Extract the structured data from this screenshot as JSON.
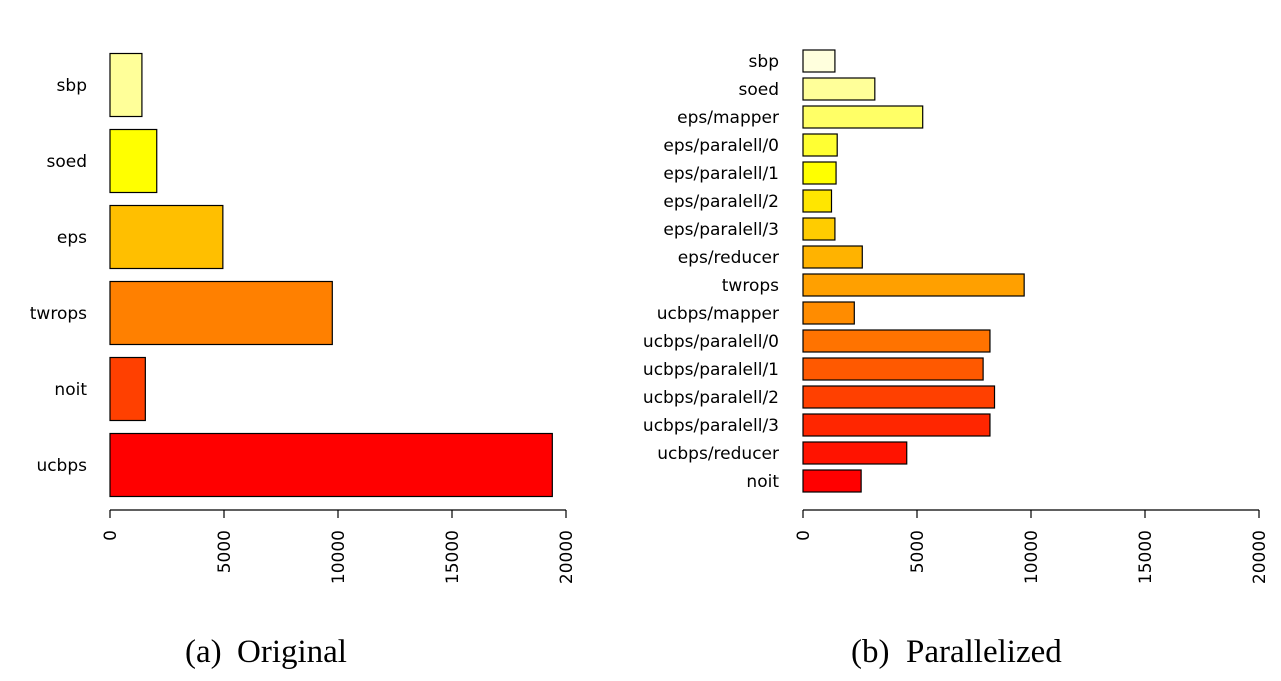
{
  "chart_data": [
    {
      "type": "bar",
      "orientation": "horizontal",
      "categories": [
        "sbp",
        "soed",
        "eps",
        "twrops",
        "noit",
        "ucbps"
      ],
      "values": [
        1400,
        2050,
        4950,
        9750,
        1550,
        19400
      ],
      "colors": [
        "#FFFF99",
        "#FFFF00",
        "#FFBF00",
        "#FF8000",
        "#FF4000",
        "#FF0000"
      ],
      "xlim": [
        0,
        20000
      ],
      "xticks": [
        "0",
        "5000",
        "10000",
        "15000",
        "20000"
      ],
      "tick_values": [
        0,
        5000,
        10000,
        15000,
        20000
      ],
      "caption_tag": "(a)",
      "caption_text": "Original",
      "grid": false
    },
    {
      "type": "bar",
      "orientation": "horizontal",
      "categories": [
        "sbp",
        "soed",
        "eps/mapper",
        "eps/paralell/0",
        "eps/paralell/1",
        "eps/paralell/2",
        "eps/paralell/3",
        "eps/reducer",
        "twrops",
        "ucbps/mapper",
        "ucbps/paralell/0",
        "ucbps/paralell/1",
        "ucbps/paralell/2",
        "ucbps/paralell/3",
        "ucbps/reducer",
        "noit"
      ],
      "values": [
        1400,
        3150,
        5250,
        1500,
        1450,
        1250,
        1400,
        2600,
        9700,
        2250,
        8200,
        7900,
        8400,
        8200,
        4550,
        2550
      ],
      "colors": [
        "#FFFFDD",
        "#FFFF99",
        "#FFFF66",
        "#FFFF33",
        "#FFFF00",
        "#FFE600",
        "#FFCC00",
        "#FFB300",
        "#FFA000",
        "#FF8C00",
        "#FF7300",
        "#FF5900",
        "#FF4000",
        "#FF2600",
        "#FF1300",
        "#FF0000"
      ],
      "xlim": [
        0,
        20000
      ],
      "xticks": [
        "0",
        "5000",
        "10000",
        "15000",
        "20000"
      ],
      "tick_values": [
        0,
        5000,
        10000,
        15000,
        20000
      ],
      "caption_tag": "(b)",
      "caption_text": "Parallelized",
      "grid": false
    }
  ]
}
